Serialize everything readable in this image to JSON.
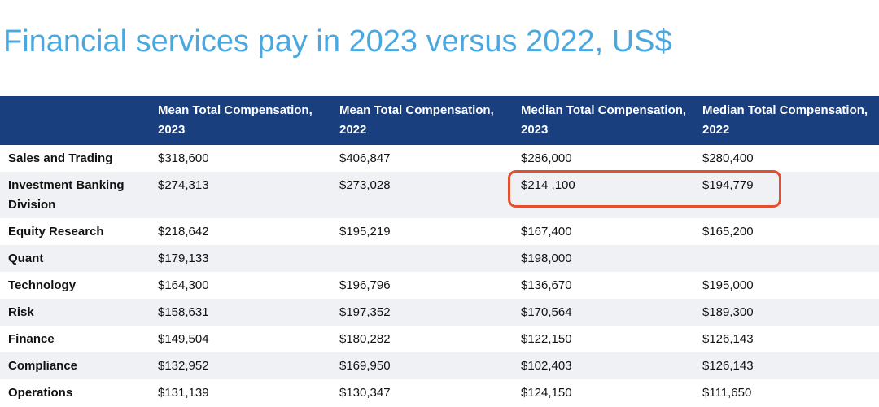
{
  "page": {
    "title": "Financial services pay in 2023 versus 2022, US$"
  },
  "table": {
    "headers": [
      "",
      "Mean Total Compensation, 2023",
      "Mean Total Compensation, 2022",
      "Median Total Compensation, 2023",
      "Median Total Compensation, 2022"
    ],
    "rows": [
      [
        "Sales and Trading",
        "$318,600",
        "$406,847",
        "$286,000",
        "$280,400"
      ],
      [
        "Investment Banking Division",
        "$274,313",
        "$273,028",
        "$214 ,100",
        "$194,779"
      ],
      [
        "Equity Research",
        "$218,642",
        "$195,219",
        "$167,400",
        "$165,200"
      ],
      [
        "Quant",
        "$179,133",
        "",
        "$198,000",
        ""
      ],
      [
        "Technology",
        "$164,300",
        "$196,796",
        "$136,670",
        "$195,000"
      ],
      [
        "Risk",
        "$158,631",
        "$197,352",
        "$170,564",
        "$189,300"
      ],
      [
        "Finance",
        "$149,504",
        "$180,282",
        "$122,150",
        "$126,143"
      ],
      [
        "Compliance",
        "$132,952",
        "$169,950",
        "$102,403",
        "$126,143"
      ],
      [
        "Operations",
        "$131,139",
        "$130,347",
        "$124,150",
        "$111,650"
      ]
    ]
  },
  "colors": {
    "title": "#4aa8e0",
    "header_bg": "#1a3f7f",
    "header_text": "#ffffff",
    "zebra": "#f0f1f4",
    "highlight": "#e2502f"
  },
  "chart_data": {
    "type": "table",
    "title": "Financial services pay in 2023 versus 2022, US$",
    "columns": [
      "Mean Total Compensation, 2023",
      "Mean Total Compensation, 2022",
      "Median Total Compensation, 2023",
      "Median Total Compensation, 2022"
    ],
    "categories": [
      "Sales and Trading",
      "Investment Banking Division",
      "Equity Research",
      "Quant",
      "Technology",
      "Risk",
      "Finance",
      "Compliance",
      "Operations"
    ],
    "series": [
      {
        "name": "Mean Total Compensation, 2023",
        "values": [
          318600,
          274313,
          218642,
          179133,
          164300,
          158631,
          149504,
          132952,
          131139
        ]
      },
      {
        "name": "Mean Total Compensation, 2022",
        "values": [
          406847,
          273028,
          195219,
          null,
          196796,
          197352,
          180282,
          169950,
          130347
        ]
      },
      {
        "name": "Median Total Compensation, 2023",
        "values": [
          286000,
          214100,
          167400,
          198000,
          136670,
          170564,
          122150,
          102403,
          124150
        ]
      },
      {
        "name": "Median Total Compensation, 2022",
        "values": [
          280400,
          194779,
          165200,
          null,
          195000,
          189300,
          126143,
          126143,
          111650
        ]
      }
    ],
    "highlighted_cells": [
      {
        "row": "Investment Banking Division",
        "column": "Median Total Compensation, 2023"
      },
      {
        "row": "Investment Banking Division",
        "column": "Median Total Compensation, 2022"
      }
    ]
  }
}
